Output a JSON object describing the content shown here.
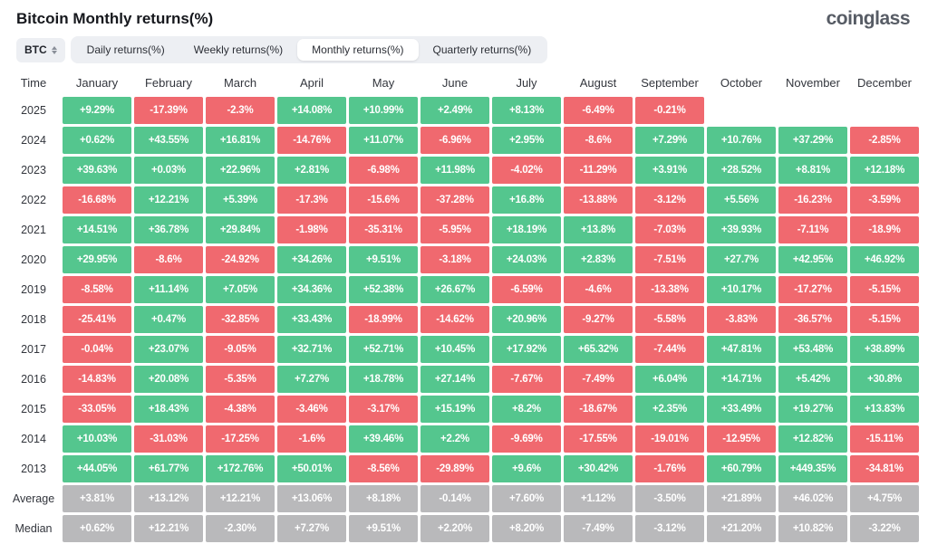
{
  "header": {
    "title": "Bitcoin Monthly returns(%)",
    "logo": "coinglass"
  },
  "controls": {
    "symbol": {
      "label": "BTC"
    },
    "tabs": [
      {
        "label": "Daily returns(%)",
        "active": false
      },
      {
        "label": "Weekly returns(%)",
        "active": false
      },
      {
        "label": "Monthly returns(%)",
        "active": true
      },
      {
        "label": "Quarterly returns(%)",
        "active": false
      }
    ]
  },
  "colors": {
    "positive": "#54c68e",
    "negative": "#f0696f",
    "neutral": "#b9b9bb"
  },
  "chart_data": {
    "type": "heatmap",
    "title": "Bitcoin Monthly returns(%)",
    "columns": [
      "Time",
      "January",
      "February",
      "March",
      "April",
      "May",
      "June",
      "July",
      "August",
      "September",
      "October",
      "November",
      "December"
    ],
    "rows": [
      {
        "label": "2025",
        "cells": [
          [
            "+9.29%",
            "p"
          ],
          [
            "-17.39%",
            "n"
          ],
          [
            "-2.3%",
            "n"
          ],
          [
            "+14.08%",
            "p"
          ],
          [
            "+10.99%",
            "p"
          ],
          [
            "+2.49%",
            "p"
          ],
          [
            "+8.13%",
            "p"
          ],
          [
            "-6.49%",
            "n"
          ],
          [
            "-0.21%",
            "n"
          ],
          null,
          null,
          null
        ]
      },
      {
        "label": "2024",
        "cells": [
          [
            "+0.62%",
            "p"
          ],
          [
            "+43.55%",
            "p"
          ],
          [
            "+16.81%",
            "p"
          ],
          [
            "-14.76%",
            "n"
          ],
          [
            "+11.07%",
            "p"
          ],
          [
            "-6.96%",
            "n"
          ],
          [
            "+2.95%",
            "p"
          ],
          [
            "-8.6%",
            "n"
          ],
          [
            "+7.29%",
            "p"
          ],
          [
            "+10.76%",
            "p"
          ],
          [
            "+37.29%",
            "p"
          ],
          [
            "-2.85%",
            "n"
          ]
        ]
      },
      {
        "label": "2023",
        "cells": [
          [
            "+39.63%",
            "p"
          ],
          [
            "+0.03%",
            "p"
          ],
          [
            "+22.96%",
            "p"
          ],
          [
            "+2.81%",
            "p"
          ],
          [
            "-6.98%",
            "n"
          ],
          [
            "+11.98%",
            "p"
          ],
          [
            "-4.02%",
            "n"
          ],
          [
            "-11.29%",
            "n"
          ],
          [
            "+3.91%",
            "p"
          ],
          [
            "+28.52%",
            "p"
          ],
          [
            "+8.81%",
            "p"
          ],
          [
            "+12.18%",
            "p"
          ]
        ]
      },
      {
        "label": "2022",
        "cells": [
          [
            "-16.68%",
            "n"
          ],
          [
            "+12.21%",
            "p"
          ],
          [
            "+5.39%",
            "p"
          ],
          [
            "-17.3%",
            "n"
          ],
          [
            "-15.6%",
            "n"
          ],
          [
            "-37.28%",
            "n"
          ],
          [
            "+16.8%",
            "p"
          ],
          [
            "-13.88%",
            "n"
          ],
          [
            "-3.12%",
            "n"
          ],
          [
            "+5.56%",
            "p"
          ],
          [
            "-16.23%",
            "n"
          ],
          [
            "-3.59%",
            "n"
          ]
        ]
      },
      {
        "label": "2021",
        "cells": [
          [
            "+14.51%",
            "p"
          ],
          [
            "+36.78%",
            "p"
          ],
          [
            "+29.84%",
            "p"
          ],
          [
            "-1.98%",
            "n"
          ],
          [
            "-35.31%",
            "n"
          ],
          [
            "-5.95%",
            "n"
          ],
          [
            "+18.19%",
            "p"
          ],
          [
            "+13.8%",
            "p"
          ],
          [
            "-7.03%",
            "n"
          ],
          [
            "+39.93%",
            "p"
          ],
          [
            "-7.11%",
            "n"
          ],
          [
            "-18.9%",
            "n"
          ]
        ]
      },
      {
        "label": "2020",
        "cells": [
          [
            "+29.95%",
            "p"
          ],
          [
            "-8.6%",
            "n"
          ],
          [
            "-24.92%",
            "n"
          ],
          [
            "+34.26%",
            "p"
          ],
          [
            "+9.51%",
            "p"
          ],
          [
            "-3.18%",
            "n"
          ],
          [
            "+24.03%",
            "p"
          ],
          [
            "+2.83%",
            "p"
          ],
          [
            "-7.51%",
            "n"
          ],
          [
            "+27.7%",
            "p"
          ],
          [
            "+42.95%",
            "p"
          ],
          [
            "+46.92%",
            "p"
          ]
        ]
      },
      {
        "label": "2019",
        "cells": [
          [
            "-8.58%",
            "n"
          ],
          [
            "+11.14%",
            "p"
          ],
          [
            "+7.05%",
            "p"
          ],
          [
            "+34.36%",
            "p"
          ],
          [
            "+52.38%",
            "p"
          ],
          [
            "+26.67%",
            "p"
          ],
          [
            "-6.59%",
            "n"
          ],
          [
            "-4.6%",
            "n"
          ],
          [
            "-13.38%",
            "n"
          ],
          [
            "+10.17%",
            "p"
          ],
          [
            "-17.27%",
            "n"
          ],
          [
            "-5.15%",
            "n"
          ]
        ]
      },
      {
        "label": "2018",
        "cells": [
          [
            "-25.41%",
            "n"
          ],
          [
            "+0.47%",
            "p"
          ],
          [
            "-32.85%",
            "n"
          ],
          [
            "+33.43%",
            "p"
          ],
          [
            "-18.99%",
            "n"
          ],
          [
            "-14.62%",
            "n"
          ],
          [
            "+20.96%",
            "p"
          ],
          [
            "-9.27%",
            "n"
          ],
          [
            "-5.58%",
            "n"
          ],
          [
            "-3.83%",
            "n"
          ],
          [
            "-36.57%",
            "n"
          ],
          [
            "-5.15%",
            "n"
          ]
        ]
      },
      {
        "label": "2017",
        "cells": [
          [
            "-0.04%",
            "n"
          ],
          [
            "+23.07%",
            "p"
          ],
          [
            "-9.05%",
            "n"
          ],
          [
            "+32.71%",
            "p"
          ],
          [
            "+52.71%",
            "p"
          ],
          [
            "+10.45%",
            "p"
          ],
          [
            "+17.92%",
            "p"
          ],
          [
            "+65.32%",
            "p"
          ],
          [
            "-7.44%",
            "n"
          ],
          [
            "+47.81%",
            "p"
          ],
          [
            "+53.48%",
            "p"
          ],
          [
            "+38.89%",
            "p"
          ]
        ]
      },
      {
        "label": "2016",
        "cells": [
          [
            "-14.83%",
            "n"
          ],
          [
            "+20.08%",
            "p"
          ],
          [
            "-5.35%",
            "n"
          ],
          [
            "+7.27%",
            "p"
          ],
          [
            "+18.78%",
            "p"
          ],
          [
            "+27.14%",
            "p"
          ],
          [
            "-7.67%",
            "n"
          ],
          [
            "-7.49%",
            "n"
          ],
          [
            "+6.04%",
            "p"
          ],
          [
            "+14.71%",
            "p"
          ],
          [
            "+5.42%",
            "p"
          ],
          [
            "+30.8%",
            "p"
          ]
        ]
      },
      {
        "label": "2015",
        "cells": [
          [
            "-33.05%",
            "n"
          ],
          [
            "+18.43%",
            "p"
          ],
          [
            "-4.38%",
            "n"
          ],
          [
            "-3.46%",
            "n"
          ],
          [
            "-3.17%",
            "n"
          ],
          [
            "+15.19%",
            "p"
          ],
          [
            "+8.2%",
            "p"
          ],
          [
            "-18.67%",
            "n"
          ],
          [
            "+2.35%",
            "p"
          ],
          [
            "+33.49%",
            "p"
          ],
          [
            "+19.27%",
            "p"
          ],
          [
            "+13.83%",
            "p"
          ]
        ]
      },
      {
        "label": "2014",
        "cells": [
          [
            "+10.03%",
            "p"
          ],
          [
            "-31.03%",
            "n"
          ],
          [
            "-17.25%",
            "n"
          ],
          [
            "-1.6%",
            "n"
          ],
          [
            "+39.46%",
            "p"
          ],
          [
            "+2.2%",
            "p"
          ],
          [
            "-9.69%",
            "n"
          ],
          [
            "-17.55%",
            "n"
          ],
          [
            "-19.01%",
            "n"
          ],
          [
            "-12.95%",
            "n"
          ],
          [
            "+12.82%",
            "p"
          ],
          [
            "-15.11%",
            "n"
          ]
        ]
      },
      {
        "label": "2013",
        "cells": [
          [
            "+44.05%",
            "p"
          ],
          [
            "+61.77%",
            "p"
          ],
          [
            "+172.76%",
            "p"
          ],
          [
            "+50.01%",
            "p"
          ],
          [
            "-8.56%",
            "n"
          ],
          [
            "-29.89%",
            "n"
          ],
          [
            "+9.6%",
            "p"
          ],
          [
            "+30.42%",
            "p"
          ],
          [
            "-1.76%",
            "n"
          ],
          [
            "+60.79%",
            "p"
          ],
          [
            "+449.35%",
            "p"
          ],
          [
            "-34.81%",
            "n"
          ]
        ]
      },
      {
        "label": "Average",
        "cells": [
          [
            "+3.81%",
            "x"
          ],
          [
            "+13.12%",
            "x"
          ],
          [
            "+12.21%",
            "x"
          ],
          [
            "+13.06%",
            "x"
          ],
          [
            "+8.18%",
            "x"
          ],
          [
            "-0.14%",
            "x"
          ],
          [
            "+7.60%",
            "x"
          ],
          [
            "+1.12%",
            "x"
          ],
          [
            "-3.50%",
            "x"
          ],
          [
            "+21.89%",
            "x"
          ],
          [
            "+46.02%",
            "x"
          ],
          [
            "+4.75%",
            "x"
          ]
        ]
      },
      {
        "label": "Median",
        "cells": [
          [
            "+0.62%",
            "x"
          ],
          [
            "+12.21%",
            "x"
          ],
          [
            "-2.30%",
            "x"
          ],
          [
            "+7.27%",
            "x"
          ],
          [
            "+9.51%",
            "x"
          ],
          [
            "+2.20%",
            "x"
          ],
          [
            "+8.20%",
            "x"
          ],
          [
            "-7.49%",
            "x"
          ],
          [
            "-3.12%",
            "x"
          ],
          [
            "+21.20%",
            "x"
          ],
          [
            "+10.82%",
            "x"
          ],
          [
            "-3.22%",
            "x"
          ]
        ]
      }
    ]
  }
}
